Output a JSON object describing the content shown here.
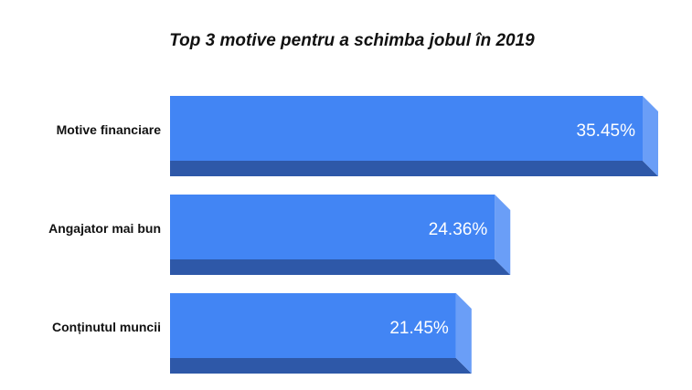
{
  "chart_data": {
    "type": "bar",
    "orientation": "horizontal",
    "title": "Top 3 motive pentru a schimba jobul în 2019",
    "categories": [
      "Motive financiare",
      "Angajator mai bun",
      "Conținutul muncii"
    ],
    "values": [
      35.45,
      24.36,
      21.45
    ],
    "value_labels": [
      "35.45%",
      "24.36%",
      "21.45%"
    ],
    "xlim": [
      0,
      35.45
    ],
    "grid": false,
    "legend": "none"
  },
  "colors": {
    "bar_front": "#4285f4",
    "bar_bottom": "#2e58a8",
    "bar_side": "#6a9ef7"
  }
}
